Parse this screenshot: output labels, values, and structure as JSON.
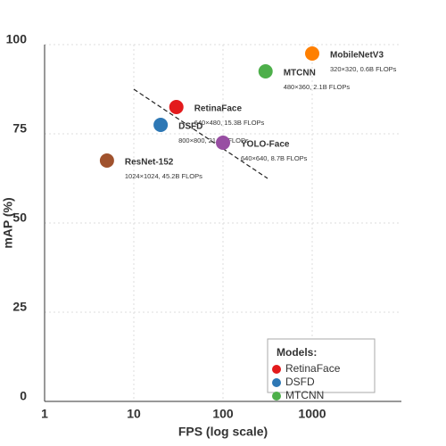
{
  "chart_data": {
    "type": "scatter",
    "x_label": "FPS (log scale)",
    "y_label": "mAP (%)",
    "xlim": [
      1,
      10000
    ],
    "xticks": [
      1,
      10,
      100,
      1000
    ],
    "xscale": "log",
    "ylim": [
      0,
      100
    ],
    "yticks": [
      0,
      25,
      50,
      75,
      100
    ],
    "grid": true,
    "legend_title": "Models:",
    "legend_position": "lower right",
    "series": [
      {
        "name": "RetinaFace",
        "color": "#e31a1c",
        "x": [
          30
        ],
        "values": [
          82.5
        ],
        "annotation": "640×480, 15.3B FLOPs"
      },
      {
        "name": "DSFD",
        "color": "#2e78b5",
        "x": [
          20
        ],
        "values": [
          77.5
        ],
        "annotation": "800×800, 21.1B FLOPs"
      },
      {
        "name": "MTCNN",
        "color": "#4daf4a",
        "x": [
          300
        ],
        "values": [
          92.5
        ],
        "annotation": "480×360, 2.1B FLOPs"
      },
      {
        "name": "YOLO-Face",
        "color": "#984ea3",
        "x": [
          100
        ],
        "values": [
          72.5
        ],
        "annotation": "640×640, 8.7B FLOPs"
      },
      {
        "name": "ResNet-152",
        "color": "#a0522d",
        "x": [
          5
        ],
        "values": [
          67.5
        ],
        "annotation": "1024×1024, 45.2B FLOPs"
      },
      {
        "name": "MobileNetV3",
        "color": "#ff7f00",
        "x": [
          1000
        ],
        "values": [
          97.5
        ],
        "annotation": "320×320, 0.6B FLOPs"
      }
    ],
    "trend_line": {
      "x": [
        10,
        316
      ],
      "values": [
        87.5,
        62.5
      ]
    }
  }
}
